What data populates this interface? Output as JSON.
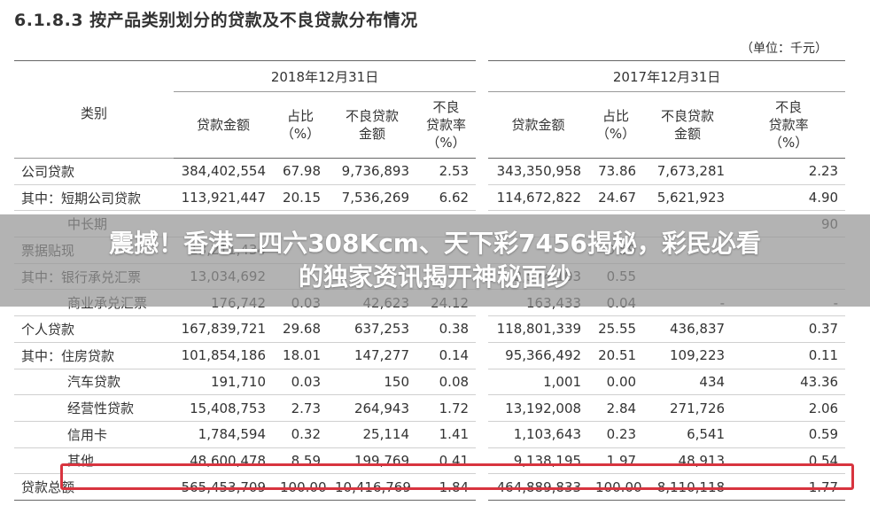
{
  "title": "6.1.8.3 按产品类别划分的贷款及不良贷款分布情况",
  "unit": "（单位：千元）",
  "header": {
    "category": "类别",
    "periods": [
      "2018年12月31日",
      "2017年12月31日"
    ],
    "columns": [
      [
        "贷款金额"
      ],
      [
        "占比",
        "（%）"
      ],
      [
        "不良贷款",
        "金额"
      ],
      [
        "不良",
        "贷款率",
        "（%）"
      ]
    ]
  },
  "rows": [
    {
      "label": "公司贷款",
      "cells": [
        "384,402,554",
        "67.98",
        "9,736,893",
        "2.53",
        "343,350,958",
        "73.86",
        "7,673,281",
        "2.23"
      ]
    },
    {
      "label": "其中：短期公司贷款",
      "cells": [
        "113,921,447",
        "20.15",
        "7,536,269",
        "6.62",
        "114,672,822",
        "24.67",
        "5,621,923",
        "4.90"
      ]
    },
    {
      "label": "中长期",
      "cells": [
        "",
        "",
        "",
        "",
        "",
        "",
        "",
        "90"
      ]
    },
    {
      "label": "票据贴现",
      "cells": [
        "13,211,434",
        "",
        "",
        "",
        "",
        "0.59",
        "",
        ""
      ]
    },
    {
      "label": "其中：银行承兑汇票",
      "cells": [
        "13,034,692",
        "",
        "",
        "",
        "2,574,103",
        "0.55",
        "",
        ""
      ]
    },
    {
      "label": "商业承兑汇票",
      "cells": [
        "176,742",
        "0.03",
        "42,623",
        "24.12",
        "163,433",
        "0.04",
        "-",
        "-"
      ]
    },
    {
      "label": "个人贷款",
      "cells": [
        "167,839,721",
        "29.68",
        "637,253",
        "0.38",
        "118,801,339",
        "25.55",
        "436,837",
        "0.37"
      ]
    },
    {
      "label": "其中：住房贷款",
      "cells": [
        "101,854,186",
        "18.01",
        "147,277",
        "0.14",
        "95,366,492",
        "20.51",
        "109,223",
        "0.11"
      ]
    },
    {
      "label": "汽车贷款",
      "cells": [
        "191,710",
        "0.03",
        "150",
        "0.08",
        "1,001",
        "0.00",
        "434",
        "43.36"
      ]
    },
    {
      "label": "经营性贷款",
      "cells": [
        "15,408,753",
        "2.73",
        "264,943",
        "1.72",
        "13,192,008",
        "2.84",
        "271,726",
        "2.06"
      ]
    },
    {
      "label": "信用卡",
      "cells": [
        "1,784,594",
        "0.32",
        "25,114",
        "1.41",
        "1,103,643",
        "0.23",
        "6,541",
        "0.59"
      ]
    },
    {
      "label": "其他",
      "cells": [
        "48,600,478",
        "8.59",
        "199,769",
        "0.41",
        "9,138,195",
        "1.97",
        "48,913",
        "0.54"
      ]
    },
    {
      "label": "贷款总额",
      "cells": [
        "565,453,709",
        "100.00",
        "10,416,769",
        "1.84",
        "464,889,833",
        "100.00",
        "8,110,118",
        "1.77"
      ]
    }
  ],
  "overlay": {
    "line1": "震撼！香港二四六308Kcm、天下彩7456揭秘，彩民必看",
    "line2": "的独家资讯揭开神秘面纱"
  },
  "colors": {
    "highlight": "#d8343f",
    "banner": "#969696"
  }
}
